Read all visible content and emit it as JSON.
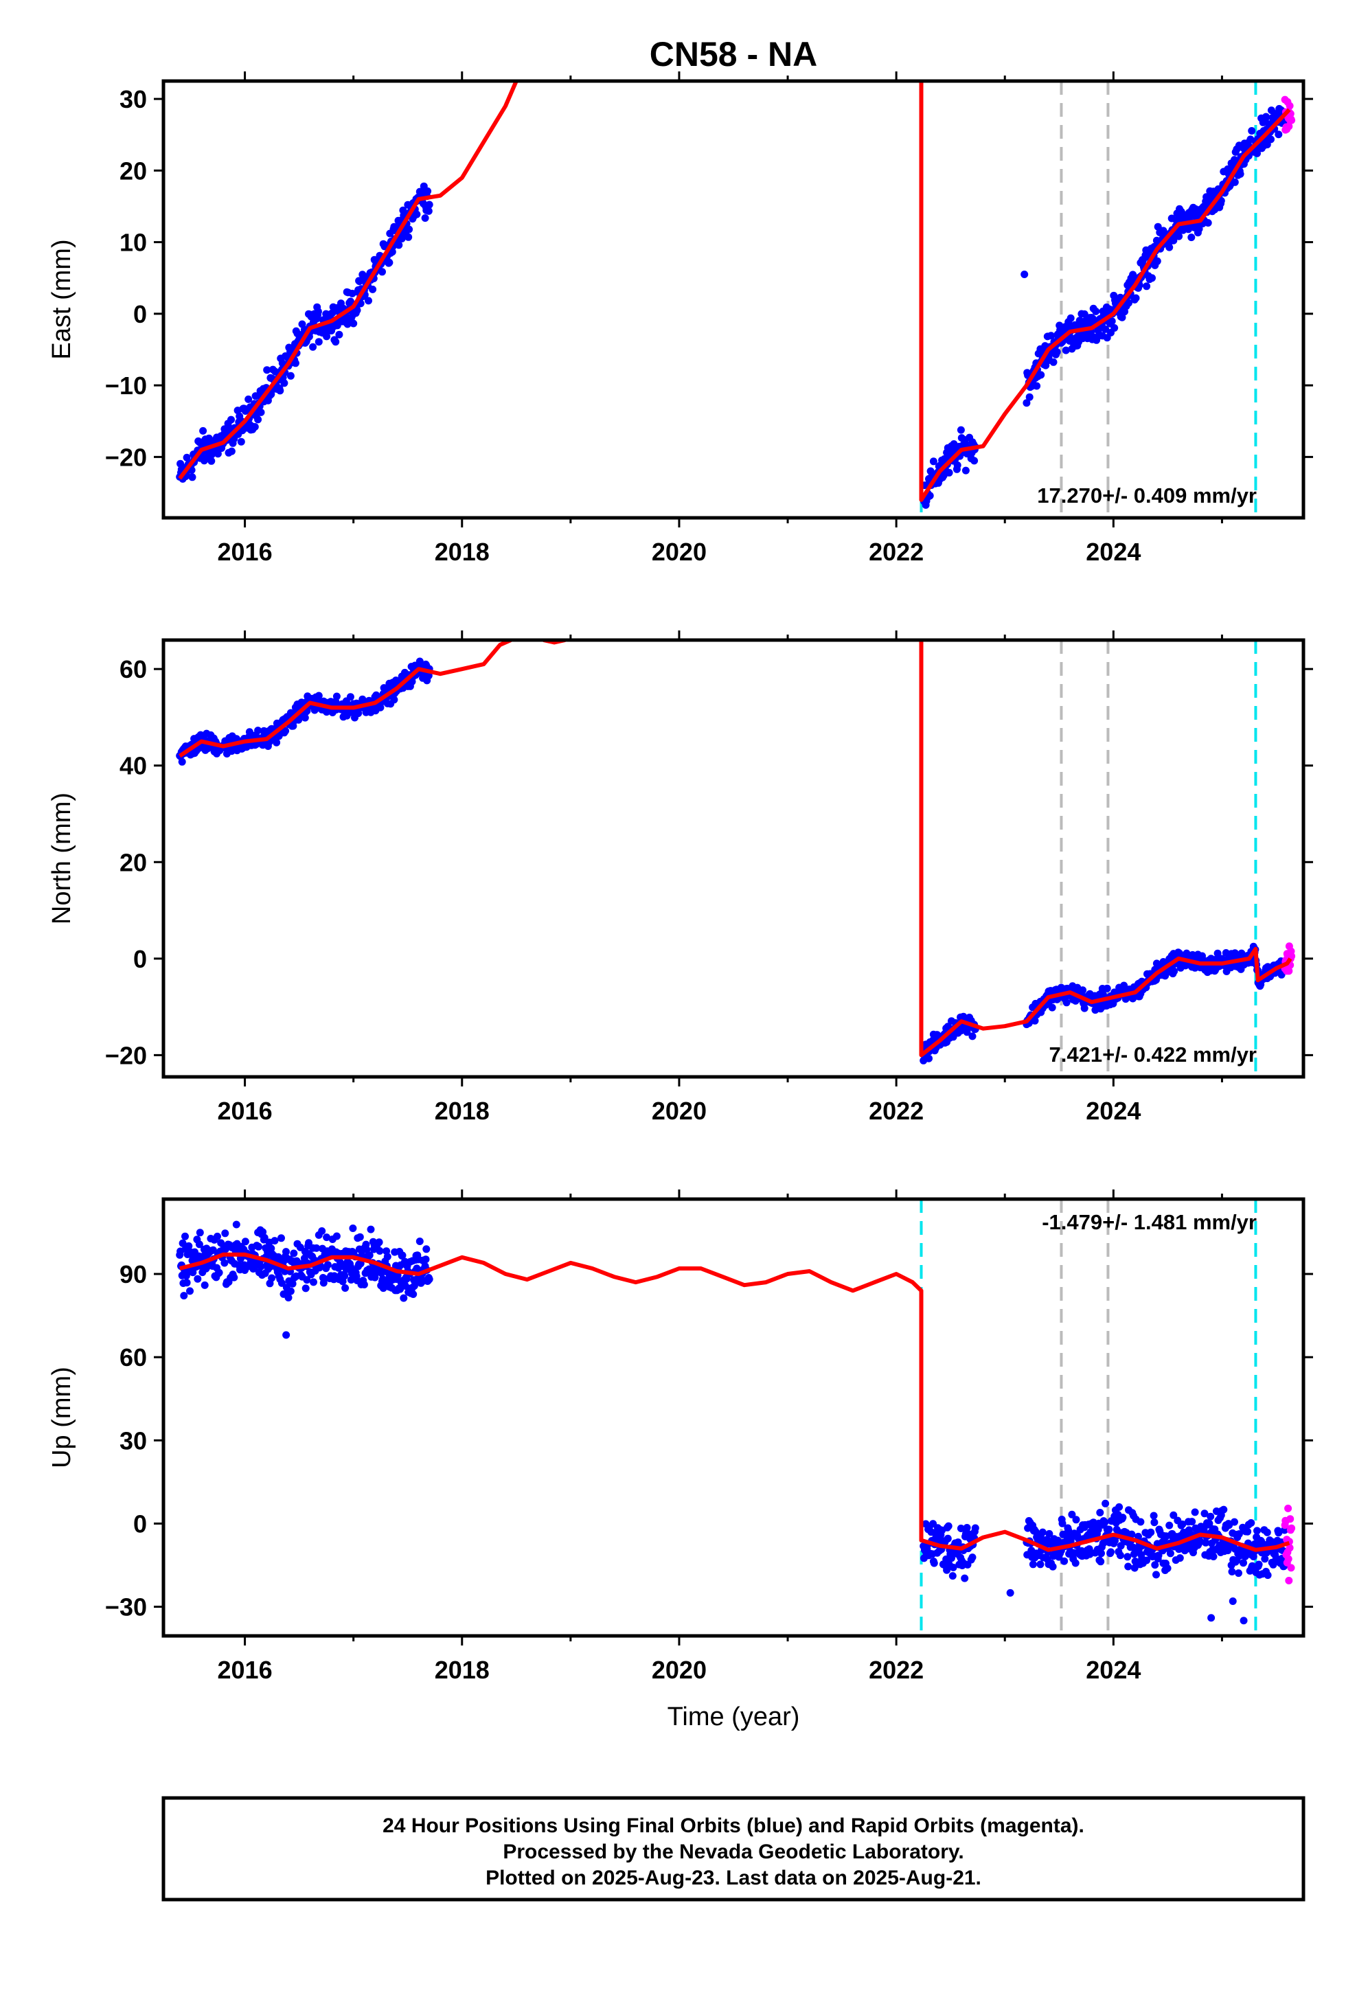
{
  "title": "CN58 - NA",
  "xlabel": "Time (year)",
  "footer": {
    "line1": "24 Hour Positions Using Final Orbits (blue) and Rapid Orbits (magenta).",
    "line2": "Processed by the Nevada Geodetic Laboratory.",
    "line3": "Plotted on 2025-Aug-23. Last data on 2025-Aug-21."
  },
  "chart_data": [
    {
      "type": "scatter",
      "panel": "east",
      "ylabel": "East (mm)",
      "xlim": [
        2015.25,
        2025.75
      ],
      "ylim": [
        -28.5,
        32.5
      ],
      "xticks": [
        2016,
        2018,
        2020,
        2022,
        2024
      ],
      "xtick_labels": [
        "2016",
        "2018",
        "2020",
        "2022",
        "2024"
      ],
      "yticks": [
        -20,
        -10,
        0,
        10,
        20,
        30
      ],
      "ytick_labels": [
        "−20",
        "−10",
        "0",
        "10",
        "20",
        "30"
      ],
      "rate_label": "17.270+/- 0.409 mm/yr",
      "event_lines": [
        {
          "x": 2022.23,
          "color": "#00e5ee"
        },
        {
          "x": 2023.52,
          "color": "#bbbbbb"
        },
        {
          "x": 2023.95,
          "color": "#bbbbbb"
        },
        {
          "x": 2025.31,
          "color": "#00e5ee"
        }
      ],
      "model_segments": [
        [
          [
            2015.4,
            -23
          ],
          [
            2015.6,
            -19
          ],
          [
            2015.8,
            -18
          ],
          [
            2016.0,
            -15
          ],
          [
            2016.2,
            -11
          ],
          [
            2016.4,
            -7
          ],
          [
            2016.6,
            -2
          ],
          [
            2016.8,
            -1
          ],
          [
            2017.0,
            1
          ],
          [
            2017.2,
            6
          ],
          [
            2017.4,
            11
          ],
          [
            2017.6,
            16
          ],
          [
            2017.8,
            16.5
          ],
          [
            2018.0,
            19
          ],
          [
            2018.2,
            24
          ],
          [
            2018.4,
            29
          ],
          [
            2018.5,
            32.5
          ]
        ],
        [
          [
            2022.23,
            32.5
          ],
          [
            2022.23,
            -26
          ],
          [
            2022.4,
            -22
          ],
          [
            2022.6,
            -19
          ],
          [
            2022.8,
            -18.5
          ],
          [
            2023.0,
            -14
          ],
          [
            2023.2,
            -10
          ],
          [
            2023.4,
            -5
          ],
          [
            2023.6,
            -2.5
          ],
          [
            2023.8,
            -2
          ],
          [
            2024.0,
            0
          ],
          [
            2024.2,
            4
          ],
          [
            2024.4,
            9
          ],
          [
            2024.6,
            12.5
          ],
          [
            2024.8,
            13
          ],
          [
            2025.0,
            17
          ],
          [
            2025.2,
            22
          ],
          [
            2025.4,
            25
          ],
          [
            2025.62,
            28.5
          ]
        ]
      ],
      "final_segments": [
        {
          "start": 2015.4,
          "end": 2017.7
        },
        {
          "start": 2022.25,
          "end": 2022.73
        },
        {
          "start": 2023.2,
          "end": 2025.58
        }
      ],
      "rapid_segment": {
        "start": 2025.58,
        "end": 2025.64
      },
      "outliers": [
        [
          2023.18,
          5.5
        ]
      ],
      "scatter": 2.0
    },
    {
      "type": "scatter",
      "panel": "north",
      "ylabel": "North (mm)",
      "xlim": [
        2015.25,
        2025.75
      ],
      "ylim": [
        -24.5,
        66
      ],
      "xticks": [
        2016,
        2018,
        2020,
        2022,
        2024
      ],
      "xtick_labels": [
        "2016",
        "2018",
        "2020",
        "2022",
        "2024"
      ],
      "yticks": [
        -20,
        0,
        20,
        40,
        60
      ],
      "ytick_labels": [
        "−20",
        "0",
        "20",
        "40",
        "60"
      ],
      "rate_label": "7.421+/- 0.422 mm/yr",
      "event_lines": [
        {
          "x": 2023.52,
          "color": "#bbbbbb"
        },
        {
          "x": 2023.95,
          "color": "#bbbbbb"
        },
        {
          "x": 2025.31,
          "color": "#00e5ee"
        }
      ],
      "model_segments": [
        [
          [
            2015.4,
            42
          ],
          [
            2015.6,
            45
          ],
          [
            2015.8,
            44
          ],
          [
            2016.0,
            45
          ],
          [
            2016.2,
            45.5
          ],
          [
            2016.4,
            49
          ],
          [
            2016.6,
            53
          ],
          [
            2016.8,
            52
          ],
          [
            2017.0,
            52
          ],
          [
            2017.2,
            53
          ],
          [
            2017.4,
            56
          ],
          [
            2017.6,
            60
          ],
          [
            2017.8,
            59
          ],
          [
            2018.0,
            60
          ],
          [
            2018.2,
            61
          ],
          [
            2018.35,
            65
          ],
          [
            2018.45,
            66
          ]
        ],
        [
          [
            2018.75,
            66
          ],
          [
            2018.85,
            65.5
          ],
          [
            2018.95,
            66
          ]
        ],
        [
          [
            2022.23,
            66
          ],
          [
            2022.23,
            -20
          ],
          [
            2022.4,
            -17
          ],
          [
            2022.6,
            -13
          ],
          [
            2022.8,
            -14.5
          ],
          [
            2023.0,
            -14
          ],
          [
            2023.2,
            -13
          ],
          [
            2023.4,
            -8
          ],
          [
            2023.6,
            -7
          ],
          [
            2023.8,
            -9
          ],
          [
            2024.0,
            -8
          ],
          [
            2024.2,
            -7
          ],
          [
            2024.4,
            -3
          ],
          [
            2024.6,
            0
          ],
          [
            2024.8,
            -1
          ],
          [
            2025.0,
            -1
          ],
          [
            2025.25,
            0
          ],
          [
            2025.31,
            2
          ],
          [
            2025.33,
            -4.5
          ],
          [
            2025.5,
            -2
          ],
          [
            2025.6,
            -1
          ],
          [
            2025.63,
            0
          ]
        ]
      ],
      "final_segments": [
        {
          "start": 2015.4,
          "end": 2017.7
        },
        {
          "start": 2022.25,
          "end": 2022.73
        },
        {
          "start": 2023.2,
          "end": 2025.58
        }
      ],
      "rapid_segment": {
        "start": 2025.58,
        "end": 2025.64
      },
      "outliers": [],
      "scatter": 1.6
    },
    {
      "type": "scatter",
      "panel": "up",
      "ylabel": "Up (mm)",
      "xlim": [
        2015.25,
        2025.75
      ],
      "ylim": [
        -40.5,
        117
      ],
      "xticks": [
        2016,
        2018,
        2020,
        2022,
        2024
      ],
      "xtick_labels": [
        "2016",
        "2018",
        "2020",
        "2022",
        "2024"
      ],
      "yticks": [
        -30,
        0,
        30,
        60,
        90
      ],
      "ytick_labels": [
        "−30",
        "0",
        "30",
        "60",
        "90"
      ],
      "rate_label": "-1.479+/- 1.481 mm/yr",
      "event_lines": [
        {
          "x": 2022.23,
          "color": "#00e5ee"
        },
        {
          "x": 2023.52,
          "color": "#bbbbbb"
        },
        {
          "x": 2023.95,
          "color": "#bbbbbb"
        },
        {
          "x": 2025.31,
          "color": "#00e5ee"
        }
      ],
      "model_segments": [
        [
          [
            2015.4,
            92
          ],
          [
            2015.6,
            94
          ],
          [
            2015.8,
            97
          ],
          [
            2016.0,
            97
          ],
          [
            2016.2,
            95
          ],
          [
            2016.4,
            92
          ],
          [
            2016.6,
            93
          ],
          [
            2016.8,
            96
          ],
          [
            2017.0,
            96
          ],
          [
            2017.2,
            94
          ],
          [
            2017.4,
            91
          ],
          [
            2017.6,
            90
          ],
          [
            2017.8,
            93
          ],
          [
            2018.0,
            96
          ],
          [
            2018.2,
            94
          ],
          [
            2018.4,
            90
          ],
          [
            2018.6,
            88
          ],
          [
            2018.8,
            91
          ],
          [
            2019.0,
            94
          ],
          [
            2019.2,
            92
          ],
          [
            2019.4,
            89
          ],
          [
            2019.6,
            87
          ],
          [
            2019.8,
            89
          ],
          [
            2020.0,
            92
          ],
          [
            2020.2,
            92
          ],
          [
            2020.4,
            89
          ],
          [
            2020.6,
            86
          ],
          [
            2020.8,
            87
          ],
          [
            2021.0,
            90
          ],
          [
            2021.2,
            91
          ],
          [
            2021.4,
            87
          ],
          [
            2021.6,
            84
          ],
          [
            2021.8,
            87
          ],
          [
            2022.0,
            90
          ],
          [
            2022.15,
            87
          ],
          [
            2022.23,
            84
          ],
          [
            2022.23,
            -6
          ],
          [
            2022.4,
            -8
          ],
          [
            2022.6,
            -9
          ],
          [
            2022.8,
            -5
          ],
          [
            2023.0,
            -3
          ],
          [
            2023.2,
            -6
          ],
          [
            2023.4,
            -9.5
          ],
          [
            2023.6,
            -8
          ],
          [
            2023.8,
            -6
          ],
          [
            2024.0,
            -4
          ],
          [
            2024.2,
            -6
          ],
          [
            2024.4,
            -9
          ],
          [
            2024.6,
            -7
          ],
          [
            2024.8,
            -4
          ],
          [
            2025.0,
            -5
          ],
          [
            2025.2,
            -8
          ],
          [
            2025.31,
            -9.5
          ],
          [
            2025.5,
            -8.5
          ],
          [
            2025.62,
            -7
          ]
        ]
      ],
      "final_segments": [
        {
          "start": 2015.4,
          "end": 2017.7
        },
        {
          "start": 2022.25,
          "end": 2022.73
        },
        {
          "start": 2023.2,
          "end": 2025.58
        }
      ],
      "rapid_segment": {
        "start": 2025.58,
        "end": 2025.64
      },
      "outliers": [
        [
          2016.38,
          68
        ],
        [
          2025.1,
          -28
        ],
        [
          2025.2,
          -35
        ],
        [
          2024.9,
          -34
        ],
        [
          2023.05,
          -25
        ]
      ],
      "scatter": 8.0
    }
  ]
}
